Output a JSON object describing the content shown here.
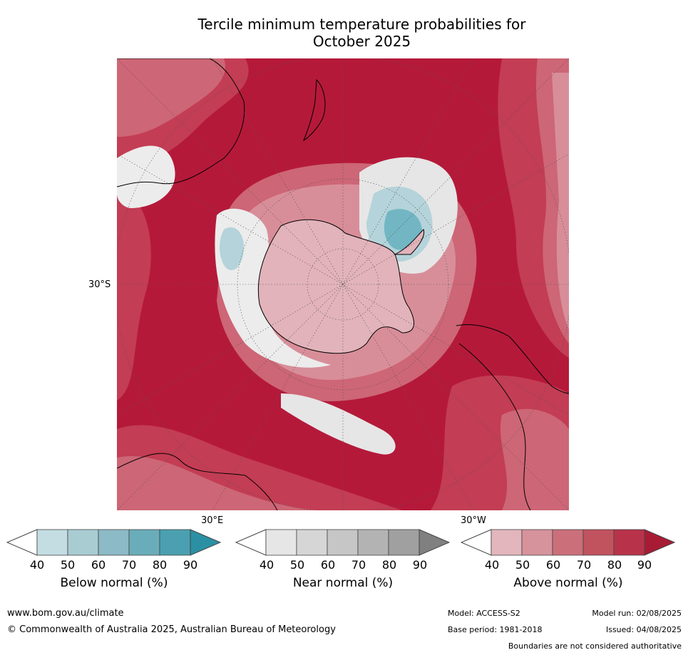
{
  "title_line1": "Tercile minimum temperature probabilities for",
  "title_line2": "October 2025",
  "map": {
    "lat_label": "30°S",
    "lon_label_left": "30°E",
    "lon_label_right": "30°W",
    "projection": "south-polar stereographic",
    "colors": {
      "above_90": "#b5193a",
      "above_80": "#c33d54",
      "above_70": "#cd6676",
      "above_60": "#d88e99",
      "above_50": "#e2b3ba",
      "near_40": "#e6e6e6",
      "near_50": "#ececec",
      "below_50": "#b5d3da",
      "below_70": "#73b6c3",
      "land_outline": "#000000",
      "grid": "#555555"
    }
  },
  "colorbars": [
    {
      "label": "Below normal (%)",
      "ticks": [
        "40",
        "50",
        "60",
        "70",
        "80",
        "90"
      ],
      "colors": [
        "#ffffff",
        "#c4dde2",
        "#a9ccd3",
        "#8cbac6",
        "#6aadba",
        "#4aa0b0",
        "#2b90a3"
      ]
    },
    {
      "label": "Near normal (%)",
      "ticks": [
        "40",
        "50",
        "60",
        "70",
        "80",
        "90"
      ],
      "colors": [
        "#ffffff",
        "#e6e6e6",
        "#d6d6d6",
        "#c6c6c6",
        "#b3b3b3",
        "#a0a0a0",
        "#808080"
      ]
    },
    {
      "label": "Above normal (%)",
      "ticks": [
        "40",
        "50",
        "60",
        "70",
        "80",
        "90"
      ],
      "colors": [
        "#ffffff",
        "#e2b6bc",
        "#d6939c",
        "#cb6f7b",
        "#c1535f",
        "#b8334a",
        "#a81b34"
      ]
    }
  ],
  "footer": {
    "website": "www.bom.gov.au/climate",
    "copyright": "© Commonwealth of Australia 2025, Australian Bureau of Meteorology",
    "model": "Model: ACCESS-S2",
    "base_period": "Base period: 1981-2018",
    "model_run": "Model run: 02/08/2025",
    "issued": "Issued: 04/08/2025",
    "disclaimer": "Boundaries are not considered authoritative"
  }
}
